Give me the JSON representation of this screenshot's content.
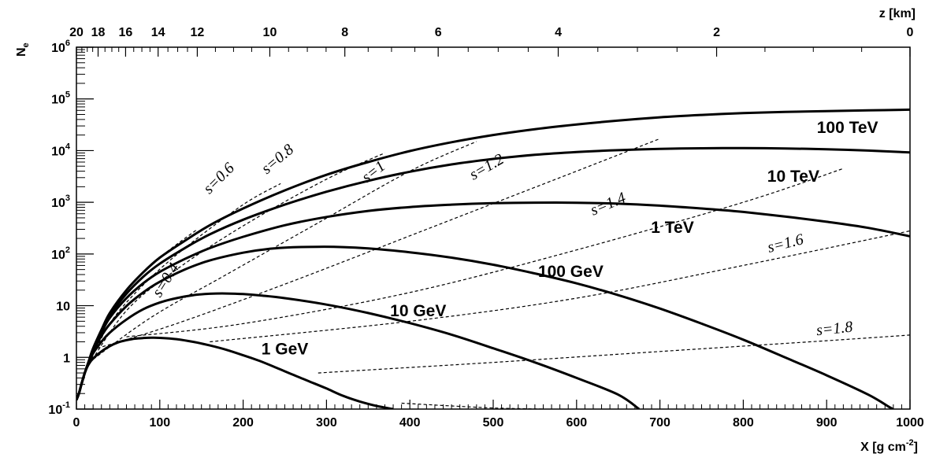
{
  "chart_data": {
    "type": "line",
    "title": "",
    "xlabel": "X [g cm-2]",
    "xlabel_main": "X [g cm",
    "xlabel_sup": "-2",
    "xlabel_end": "]",
    "ylabel": "Ne",
    "ylabel_main": "N",
    "ylabel_sub": "e",
    "x2label": "z [km]",
    "xlim": [
      0,
      1000
    ],
    "ylim": [
      0.1,
      1000000
    ],
    "yscale": "log",
    "grid": false,
    "x_ticks": [
      0,
      100,
      200,
      300,
      400,
      500,
      600,
      700,
      800,
      900,
      1000
    ],
    "x_tick_labels": [
      "0",
      "100",
      "200",
      "300",
      "400",
      "500",
      "600",
      "700",
      "800",
      "900",
      "1000"
    ],
    "y_ticks": [
      0.1,
      1,
      10,
      100,
      1000,
      10000,
      100000,
      1000000
    ],
    "y_tick_labels": [
      {
        "base": "10",
        "exp": "-1"
      },
      {
        "base": "1",
        "exp": ""
      },
      {
        "base": "10",
        "exp": ""
      },
      {
        "base": "10",
        "exp": "2"
      },
      {
        "base": "10",
        "exp": "3"
      },
      {
        "base": "10",
        "exp": "4"
      },
      {
        "base": "10",
        "exp": "5"
      },
      {
        "base": "10",
        "exp": "6"
      }
    ],
    "top_axis_ticks": [
      {
        "label": "20",
        "x": 0
      },
      {
        "label": "18",
        "x": 26
      },
      {
        "label": "16",
        "x": 59
      },
      {
        "label": "14",
        "x": 98
      },
      {
        "label": "12",
        "x": 145
      },
      {
        "label": "10",
        "x": 232
      },
      {
        "label": "8",
        "x": 322
      },
      {
        "label": "6",
        "x": 434
      },
      {
        "label": "4",
        "x": 578
      },
      {
        "label": "2",
        "x": 768
      },
      {
        "label": "0",
        "x": 1000
      }
    ],
    "series": [
      {
        "name": "1 GeV",
        "label": "1 GeV",
        "label_pos": {
          "x": 250,
          "y": 1.15
        },
        "points": [
          [
            0,
            0.15
          ],
          [
            3,
            0.2
          ],
          [
            6,
            0.3
          ],
          [
            10,
            0.5
          ],
          [
            15,
            0.75
          ],
          [
            20,
            0.95
          ],
          [
            30,
            1.3
          ],
          [
            40,
            1.65
          ],
          [
            50,
            1.95
          ],
          [
            60,
            2.15
          ],
          [
            70,
            2.3
          ],
          [
            80,
            2.37
          ],
          [
            90,
            2.4
          ],
          [
            100,
            2.38
          ],
          [
            120,
            2.25
          ],
          [
            140,
            2.0
          ],
          [
            160,
            1.7
          ],
          [
            180,
            1.4
          ],
          [
            200,
            1.1
          ],
          [
            220,
            0.85
          ],
          [
            240,
            0.63
          ],
          [
            260,
            0.46
          ],
          [
            280,
            0.34
          ],
          [
            300,
            0.25
          ],
          [
            320,
            0.18
          ],
          [
            340,
            0.14
          ],
          [
            360,
            0.115
          ],
          [
            380,
            0.1
          ]
        ]
      },
      {
        "name": "10 GeV",
        "label": "10 GeV",
        "label_pos": {
          "x": 410,
          "y": 6.2
        },
        "points": [
          [
            0,
            0.15
          ],
          [
            3,
            0.2
          ],
          [
            6,
            0.3
          ],
          [
            10,
            0.5
          ],
          [
            15,
            0.8
          ],
          [
            20,
            1.2
          ],
          [
            30,
            2.0
          ],
          [
            40,
            3.0
          ],
          [
            60,
            5.4
          ],
          [
            80,
            8.5
          ],
          [
            100,
            11.5
          ],
          [
            120,
            14
          ],
          [
            140,
            16
          ],
          [
            160,
            17
          ],
          [
            180,
            17.2
          ],
          [
            200,
            16.8
          ],
          [
            220,
            15.8
          ],
          [
            250,
            14
          ],
          [
            300,
            10.5
          ],
          [
            350,
            7.2
          ],
          [
            400,
            4.6
          ],
          [
            450,
            2.75
          ],
          [
            500,
            1.5
          ],
          [
            550,
            0.8
          ],
          [
            600,
            0.4
          ],
          [
            650,
            0.19
          ],
          [
            675,
            0.1
          ]
        ]
      },
      {
        "name": "100 GeV",
        "label": "100 GeV",
        "label_pos": {
          "x": 593,
          "y": 36
        },
        "points": [
          [
            0,
            0.15
          ],
          [
            3,
            0.2
          ],
          [
            6,
            0.3
          ],
          [
            10,
            0.5
          ],
          [
            15,
            0.8
          ],
          [
            20,
            1.3
          ],
          [
            30,
            2.6
          ],
          [
            40,
            4.4
          ],
          [
            60,
            9.8
          ],
          [
            80,
            18
          ],
          [
            100,
            29
          ],
          [
            130,
            50
          ],
          [
            160,
            75
          ],
          [
            200,
            106
          ],
          [
            230,
            125
          ],
          [
            260,
            135
          ],
          [
            290,
            138
          ],
          [
            320,
            136
          ],
          [
            350,
            128
          ],
          [
            400,
            108
          ],
          [
            450,
            85
          ],
          [
            500,
            62
          ],
          [
            550,
            42
          ],
          [
            600,
            27
          ],
          [
            650,
            16
          ],
          [
            700,
            8.8
          ],
          [
            750,
            4.5
          ],
          [
            800,
            2.2
          ],
          [
            850,
            1.0
          ],
          [
            900,
            0.45
          ],
          [
            950,
            0.19
          ],
          [
            975,
            0.11
          ],
          [
            980,
            0.1
          ]
        ]
      },
      {
        "name": "1 TeV",
        "label": "1 TeV",
        "label_pos": {
          "x": 715,
          "y": 255
        },
        "points": [
          [
            0,
            0.15
          ],
          [
            3,
            0.2
          ],
          [
            6,
            0.3
          ],
          [
            10,
            0.5
          ],
          [
            15,
            0.85
          ],
          [
            20,
            1.4
          ],
          [
            30,
            3.0
          ],
          [
            40,
            5.8
          ],
          [
            60,
            14
          ],
          [
            80,
            27
          ],
          [
            100,
            45
          ],
          [
            130,
            80
          ],
          [
            160,
            130
          ],
          [
            200,
            215
          ],
          [
            250,
            360
          ],
          [
            300,
            520
          ],
          [
            350,
            680
          ],
          [
            400,
            810
          ],
          [
            450,
            900
          ],
          [
            500,
            960
          ],
          [
            550,
            985
          ],
          [
            600,
            980
          ],
          [
            650,
            940
          ],
          [
            700,
            860
          ],
          [
            750,
            760
          ],
          [
            800,
            650
          ],
          [
            850,
            530
          ],
          [
            900,
            420
          ],
          [
            950,
            320
          ],
          [
            1000,
            220
          ]
        ]
      },
      {
        "name": "10 TeV",
        "label": "10 TeV",
        "label_pos": {
          "x": 860,
          "y": 2500
        },
        "points": [
          [
            0,
            0.15
          ],
          [
            3,
            0.2
          ],
          [
            6,
            0.3
          ],
          [
            10,
            0.5
          ],
          [
            15,
            0.85
          ],
          [
            20,
            1.45
          ],
          [
            30,
            3.2
          ],
          [
            40,
            6.5
          ],
          [
            60,
            17
          ],
          [
            80,
            36
          ],
          [
            100,
            65
          ],
          [
            130,
            130
          ],
          [
            160,
            240
          ],
          [
            200,
            460
          ],
          [
            250,
            900
          ],
          [
            300,
            1600
          ],
          [
            350,
            2600
          ],
          [
            400,
            3900
          ],
          [
            450,
            5400
          ],
          [
            500,
            6900
          ],
          [
            550,
            8300
          ],
          [
            600,
            9400
          ],
          [
            650,
            10200
          ],
          [
            700,
            10800
          ],
          [
            750,
            11100
          ],
          [
            800,
            11200
          ],
          [
            850,
            11000
          ],
          [
            900,
            10600
          ],
          [
            950,
            10000
          ],
          [
            1000,
            9200
          ]
        ]
      },
      {
        "name": "100 TeV",
        "label": "100 TeV",
        "label_pos": {
          "x": 925,
          "y": 22000
        },
        "points": [
          [
            0,
            0.15
          ],
          [
            3,
            0.2
          ],
          [
            6,
            0.3
          ],
          [
            10,
            0.5
          ],
          [
            15,
            0.87
          ],
          [
            20,
            1.5
          ],
          [
            30,
            3.4
          ],
          [
            40,
            7.2
          ],
          [
            60,
            20
          ],
          [
            80,
            44
          ],
          [
            100,
            85
          ],
          [
            130,
            180
          ],
          [
            160,
            360
          ],
          [
            200,
            760
          ],
          [
            250,
            1700
          ],
          [
            300,
            3400
          ],
          [
            350,
            6000
          ],
          [
            400,
            9800
          ],
          [
            450,
            14500
          ],
          [
            500,
            20000
          ],
          [
            550,
            26000
          ],
          [
            600,
            32000
          ],
          [
            650,
            38000
          ],
          [
            700,
            44000
          ],
          [
            750,
            49000
          ],
          [
            800,
            53000
          ],
          [
            850,
            56000
          ],
          [
            900,
            58000
          ],
          [
            950,
            60000
          ],
          [
            1000,
            62000
          ]
        ]
      }
    ],
    "age_lines": [
      {
        "label": "s=0.4",
        "label_pos": {
          "x": 112,
          "y": 28
        },
        "label_angle": -58,
        "points": [
          [
            10,
            0.5
          ],
          [
            30,
            3.4
          ],
          [
            60,
            20
          ],
          [
            100,
            85
          ],
          [
            145,
            300
          ]
        ]
      },
      {
        "label": "s=0.6",
        "label_pos": {
          "x": 175,
          "y": 2500
        },
        "label_angle": -45,
        "points": [
          [
            10,
            0.5
          ],
          [
            40,
            4.5
          ],
          [
            80,
            25
          ],
          [
            130,
            130
          ],
          [
            200,
            900
          ],
          [
            245,
            2300
          ]
        ]
      },
      {
        "label": "s=0.8",
        "label_pos": {
          "x": 245,
          "y": 5800
        },
        "label_angle": -40,
        "points": [
          [
            12,
            0.6
          ],
          [
            60,
            8
          ],
          [
            120,
            50
          ],
          [
            200,
            350
          ],
          [
            300,
            2800
          ],
          [
            370,
            9000
          ]
        ]
      },
      {
        "label": "s=1",
        "label_pos": {
          "x": 360,
          "y": 3300
        },
        "label_angle": -38,
        "points": [
          [
            15,
            0.8
          ],
          [
            90,
            6
          ],
          [
            180,
            40
          ],
          [
            290,
            400
          ],
          [
            400,
            4000
          ],
          [
            480,
            15000
          ]
        ]
      },
      {
        "label": "s=1.2",
        "label_pos": {
          "x": 495,
          "y": 4000
        },
        "label_angle": -30,
        "points": [
          [
            25,
            1.5
          ],
          [
            120,
            4.5
          ],
          [
            260,
            30
          ],
          [
            420,
            300
          ],
          [
            580,
            3000
          ],
          [
            700,
            17000
          ]
        ]
      },
      {
        "label": "s=1.4",
        "label_pos": {
          "x": 640,
          "y": 760
        },
        "label_angle": -23,
        "points": [
          [
            60,
            2.5
          ],
          [
            200,
            4.5
          ],
          [
            400,
            18
          ],
          [
            600,
            120
          ],
          [
            800,
            1000
          ],
          [
            920,
            4500
          ]
        ]
      },
      {
        "label": "s=1.6",
        "label_pos": {
          "x": 852,
          "y": 130
        },
        "label_angle": -14,
        "points": [
          [
            160,
            2
          ],
          [
            400,
            5
          ],
          [
            600,
            14
          ],
          [
            800,
            60
          ],
          [
            1000,
            280
          ]
        ]
      },
      {
        "label": "s=1.8",
        "label_pos": {
          "x": 910,
          "y": 2.9
        },
        "label_angle": -6,
        "points": [
          [
            290,
            0.5
          ],
          [
            500,
            0.8
          ],
          [
            700,
            1.3
          ],
          [
            900,
            2.1
          ],
          [
            1000,
            2.7
          ]
        ]
      },
      {
        "label": "",
        "points": [
          [
            390,
            0.13
          ],
          [
            450,
            0.115
          ],
          [
            500,
            0.105
          ],
          [
            560,
            0.1
          ]
        ]
      }
    ]
  }
}
